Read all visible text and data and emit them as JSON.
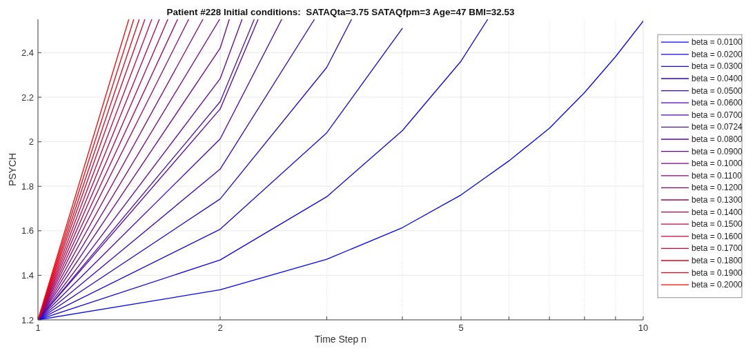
{
  "chart_data": {
    "type": "line",
    "title": "Patient #228 Initial conditions:  SATAQta=3.75 SATAQfpm=3 Age=47 BMI=32.53",
    "xlabel": "Time Step n",
    "ylabel": "PSYCH",
    "log": "x",
    "grid": true,
    "legend": "right",
    "xlim": [
      1,
      10
    ],
    "xticks": [
      1,
      2,
      {
        "value": 3,
        "label": null
      },
      {
        "value": 4,
        "label": null
      },
      5,
      {
        "value": 6,
        "label": null
      },
      {
        "value": 7,
        "label": null
      },
      {
        "value": 8,
        "label": null
      },
      {
        "value": 9,
        "label": null
      },
      10
    ],
    "ylim": [
      1.2,
      2.55
    ],
    "yticks": [
      1.2,
      1.4,
      1.6,
      1.8,
      2,
      2.2,
      2.4
    ],
    "series": [
      {
        "name": "beta = 0.0100",
        "color": "#0000ff",
        "x": [
          1,
          2,
          3,
          4,
          5,
          6,
          7,
          8,
          9,
          10
        ],
        "values": [
          1.2,
          1.335,
          1.472,
          1.614,
          1.761,
          1.914,
          2.061,
          2.221,
          2.382,
          2.542
        ]
      },
      {
        "name": "beta = 0.0200",
        "color": "#0d00f2",
        "x": [
          1,
          2,
          3,
          4,
          5,
          5.535
        ],
        "values": [
          1.2,
          1.469,
          1.753,
          2.05,
          2.362,
          2.55
        ]
      },
      {
        "name": "beta = 0.0300",
        "color": "#1b00e4",
        "x": [
          1,
          2,
          3,
          4
        ],
        "values": [
          1.2,
          1.607,
          2.04,
          2.509
        ]
      },
      {
        "name": "beta = 0.0400",
        "color": "#2800d7",
        "x": [
          1,
          2,
          3,
          3.297
        ],
        "values": [
          1.2,
          1.743,
          2.334,
          2.55
        ]
      },
      {
        "name": "beta = 0.0500",
        "color": "#3600c9",
        "x": [
          1,
          2,
          2.863
        ],
        "values": [
          1.2,
          1.877,
          2.55
        ]
      },
      {
        "name": "beta = 0.0600",
        "color": "#4300bc",
        "x": [
          1,
          2,
          2.528
        ],
        "values": [
          1.2,
          2.013,
          2.55
        ]
      },
      {
        "name": "beta = 0.0700",
        "color": "#5000af",
        "x": [
          1,
          2,
          2.311
        ],
        "values": [
          1.2,
          2.147,
          2.55
        ]
      },
      {
        "name": "beta = 0.0724",
        "color": "#5010a8",
        "x": [
          1,
          2,
          2.277
        ],
        "values": [
          1.2,
          2.18,
          2.55
        ]
      },
      {
        "name": "beta = 0.0800",
        "color": "#5e00a1",
        "x": [
          1,
          2,
          2.174
        ],
        "values": [
          1.2,
          2.283,
          2.55
        ]
      },
      {
        "name": "beta = 0.0900",
        "color": "#6b0094",
        "x": [
          1,
          2,
          2.071
        ],
        "values": [
          1.2,
          2.42,
          2.55
        ]
      },
      {
        "name": "beta = 0.1000",
        "color": "#790086",
        "x": [
          1,
          1.996
        ],
        "values": [
          1.2,
          2.55
        ]
      },
      {
        "name": "beta = 0.1100",
        "color": "#860079",
        "x": [
          1,
          1.873
        ],
        "values": [
          1.2,
          2.55
        ]
      },
      {
        "name": "beta = 0.1200",
        "color": "#94006b",
        "x": [
          1,
          1.774
        ],
        "values": [
          1.2,
          2.55
        ]
      },
      {
        "name": "beta = 0.1300",
        "color": "#a1005e",
        "x": [
          1,
          1.701
        ],
        "values": [
          1.2,
          2.55
        ]
      },
      {
        "name": "beta = 0.1400",
        "color": "#ae0050",
        "x": [
          1,
          1.639
        ],
        "values": [
          1.2,
          2.55
        ]
      },
      {
        "name": "beta = 0.1500",
        "color": "#bc0043",
        "x": [
          1,
          1.587
        ],
        "values": [
          1.2,
          2.55
        ]
      },
      {
        "name": "beta = 0.1600",
        "color": "#c90036",
        "x": [
          1,
          1.542
        ],
        "values": [
          1.2,
          2.55
        ]
      },
      {
        "name": "beta = 0.1700",
        "color": "#d70028",
        "x": [
          1,
          1.502
        ],
        "values": [
          1.2,
          2.55
        ]
      },
      {
        "name": "beta = 0.1800",
        "color": "#e4001b",
        "x": [
          1,
          1.47
        ],
        "values": [
          1.2,
          2.55
        ]
      },
      {
        "name": "beta = 0.1900",
        "color": "#f2000d",
        "x": [
          1,
          1.44
        ],
        "values": [
          1.2,
          2.55
        ]
      },
      {
        "name": "beta = 0.2000",
        "color": "#ff0000",
        "x": [
          1,
          1.413
        ],
        "values": [
          1.2,
          2.55
        ]
      }
    ]
  }
}
